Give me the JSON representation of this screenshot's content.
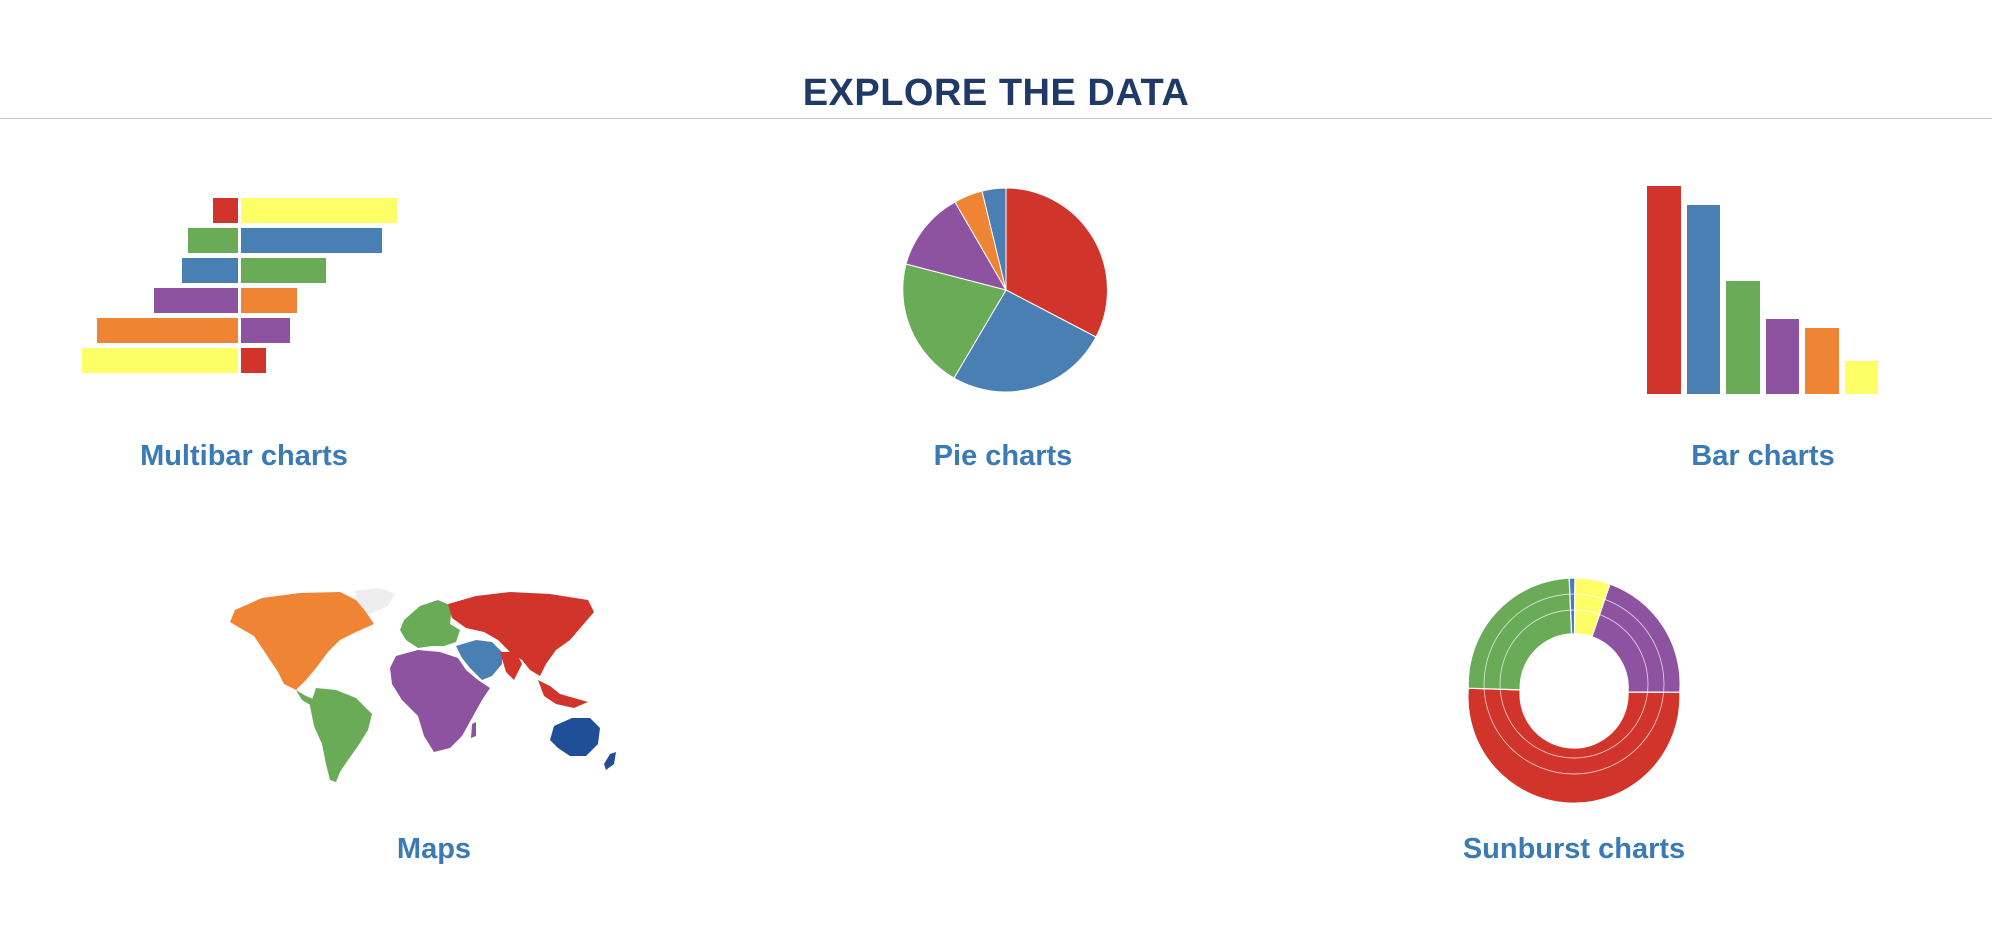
{
  "header": {
    "title": "EXPLORE THE DATA"
  },
  "colors": {
    "title": "#1f3a66",
    "link": "#3a7ab5",
    "red": "#d0342b",
    "blue": "#4a7fb3",
    "green": "#69ab57",
    "purple": "#8d53a0",
    "orange": "#ef8534",
    "yellow": "#feff66",
    "dark_blue": "#1f4f96"
  },
  "cards": {
    "multibar": {
      "label": "Multibar charts"
    },
    "pie": {
      "label": "Pie charts"
    },
    "bar": {
      "label": "Bar charts"
    },
    "maps": {
      "label": "Maps"
    },
    "sunburst": {
      "label": "Sunburst charts"
    }
  }
}
